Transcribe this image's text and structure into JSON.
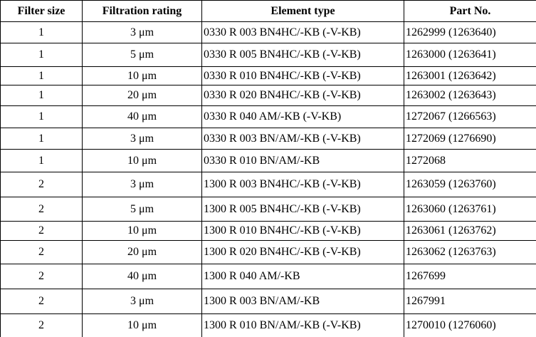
{
  "table": {
    "header": [
      "Filter size",
      "Filtration rating",
      "Element type",
      "Part No."
    ],
    "rows": [
      [
        "1",
        "3 μm",
        "0330 R 003 BN4HC/-KB (-V-KB)",
        "1262999 (1263640)"
      ],
      [
        "1",
        "5 μm",
        "0330 R 005 BN4HC/-KB (-V-KB)",
        "1263000 (1263641)"
      ],
      [
        "1",
        "10 μm",
        "0330 R 010 BN4HC/-KB (-V-KB)",
        "1263001 (1263642)"
      ],
      [
        "1",
        "20 μm",
        "0330 R 020 BN4HC/-KB (-V-KB)",
        "1263002 (1263643)"
      ],
      [
        "1",
        "40 μm",
        "0330 R 040 AM/-KB (-V-KB)",
        "1272067 (1266563)"
      ],
      [
        "1",
        "3 μm",
        "0330 R 003 BN/AM/-KB (-V-KB)",
        "1272069 (1276690)"
      ],
      [
        "1",
        "10 μm",
        "0330 R 010 BN/AM/-KB",
        "1272068"
      ],
      [
        "2",
        "3 μm",
        "1300 R 003 BN4HC/-KB (-V-KB)",
        "1263059 (1263760)"
      ],
      [
        "2",
        "5 μm",
        "1300 R 005 BN4HC/-KB (-V-KB)",
        "1263060 (1263761)"
      ],
      [
        "2",
        "10 μm",
        "1300 R 010 BN4HC/-KB (-V-KB)",
        "1263061 (1263762)"
      ],
      [
        "2",
        "20 μm",
        "1300 R 020 BN4HC/-KB (-V-KB)",
        "1263062 (1263763)"
      ],
      [
        "2",
        "40 μm",
        "1300 R 040 AM/-KB",
        "1267699"
      ],
      [
        "2",
        "3 μm",
        "1300 R 003 BN/AM/-KB",
        "1267991"
      ],
      [
        "2",
        "10 μm",
        "1300 R 010 BN/AM/-KB (-V-KB)",
        "1270010 (1276060)"
      ]
    ]
  }
}
